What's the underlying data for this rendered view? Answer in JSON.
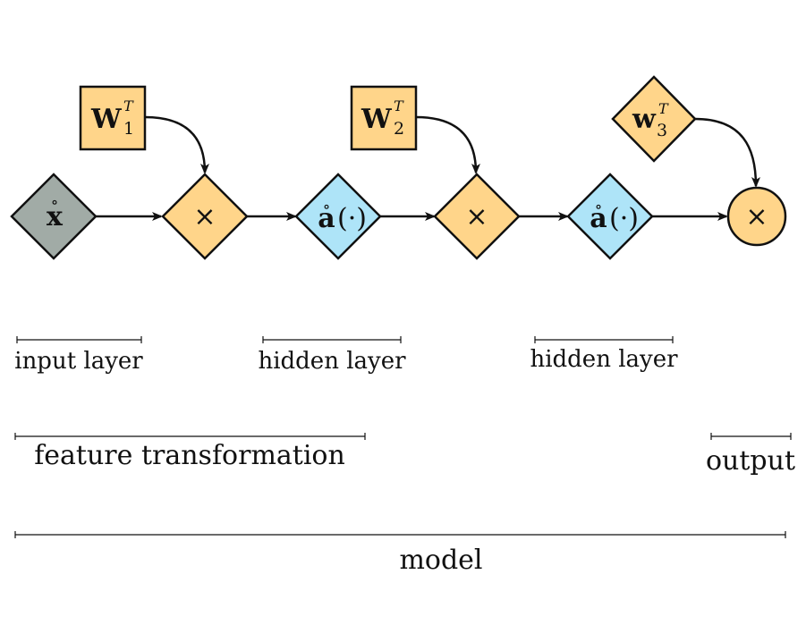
{
  "colors": {
    "input_node": "#a1aba6",
    "operation_node": "#ffd58a",
    "activation_node": "#aee4f8",
    "stroke": "#111111"
  },
  "nodes": {
    "input": {
      "symbol": "x",
      "accent": "∘",
      "shape": "diamond"
    },
    "multiply_1": {
      "symbol": "×",
      "shape": "diamond"
    },
    "activation_1": {
      "symbol": "a",
      "accent": "∘",
      "suffix": "(·)",
      "shape": "diamond"
    },
    "multiply_2": {
      "symbol": "×",
      "shape": "diamond"
    },
    "activation_2": {
      "symbol": "a",
      "accent": "∘",
      "suffix": "(·)",
      "shape": "diamond"
    },
    "multiply_3": {
      "symbol": "×",
      "shape": "circle"
    }
  },
  "weights": {
    "w1": {
      "base": "W",
      "sub": "1",
      "sup": "T",
      "shape": "square"
    },
    "w2": {
      "base": "W",
      "sub": "2",
      "sup": "T",
      "shape": "square"
    },
    "w3": {
      "base": "w",
      "sub": "3",
      "sup": "T",
      "shape": "diamond"
    }
  },
  "brackets": {
    "input_layer": "input layer",
    "hidden_layer_1": "hidden layer",
    "hidden_layer_2": "hidden layer",
    "feature_transformation": "feature transformation",
    "output": "output",
    "model": "model"
  }
}
